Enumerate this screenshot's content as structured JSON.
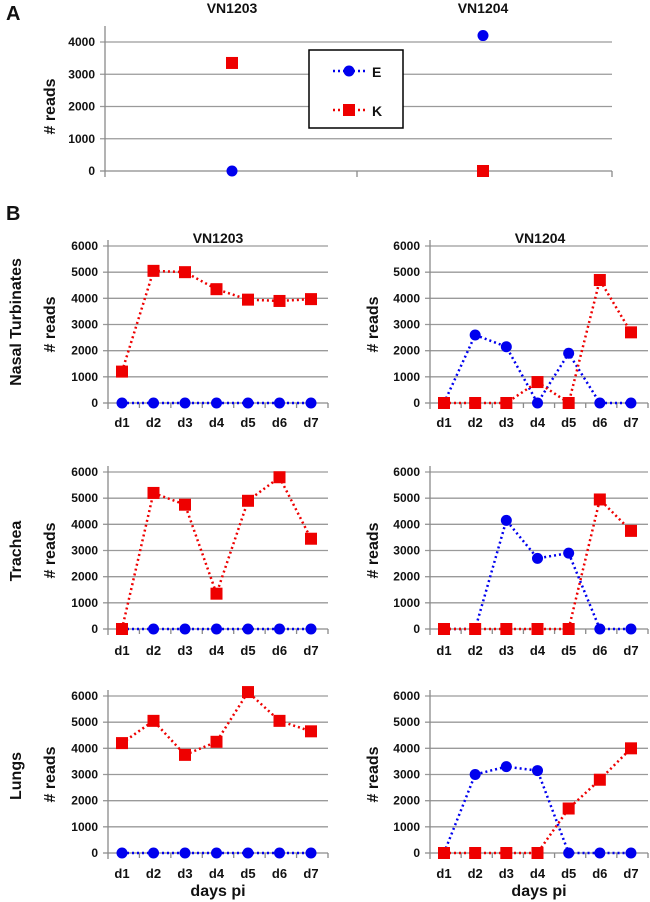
{
  "colors": {
    "E": "#0000ee",
    "K": "#ee0000"
  },
  "chart_data": [
    {
      "panel": "A",
      "type": "scatter",
      "titles": [
        "VN1203",
        "VN1204"
      ],
      "categories": [
        "VN1203",
        "VN1204"
      ],
      "ylabel": "# reads",
      "ylim": [
        0,
        4000
      ],
      "yticks": [
        "0",
        "1000",
        "2000",
        "3000",
        "4000"
      ],
      "legend": {
        "placement": "center",
        "entries": [
          "E",
          "K"
        ]
      },
      "series": [
        {
          "name": "E",
          "marker": "circle",
          "values": [
            0,
            4200
          ]
        },
        {
          "name": "K",
          "marker": "square",
          "values": [
            3350,
            0
          ]
        }
      ]
    },
    {
      "panel": "B",
      "type": "line",
      "tissue": "Nasal Turbinates",
      "strain": "VN1203",
      "categories": [
        "d1",
        "d2",
        "d3",
        "d4",
        "d5",
        "d6",
        "d7"
      ],
      "ylabel": "# reads",
      "ylim": [
        0,
        6000
      ],
      "yticks": [
        "0",
        "1000",
        "2000",
        "3000",
        "4000",
        "5000",
        "6000"
      ],
      "series": [
        {
          "name": "E",
          "values": [
            0,
            0,
            0,
            0,
            0,
            0,
            0
          ]
        },
        {
          "name": "K",
          "values": [
            1200,
            5050,
            5000,
            4350,
            3950,
            3900,
            3970
          ]
        }
      ]
    },
    {
      "panel": "B",
      "type": "line",
      "tissue": "Nasal Turbinates",
      "strain": "VN1204",
      "categories": [
        "d1",
        "d2",
        "d3",
        "d4",
        "d5",
        "d6",
        "d7"
      ],
      "ylabel": "# reads",
      "ylim": [
        0,
        6000
      ],
      "yticks": [
        "0",
        "1000",
        "2000",
        "3000",
        "4000",
        "5000",
        "6000"
      ],
      "series": [
        {
          "name": "E",
          "values": [
            0,
            2600,
            2150,
            0,
            1900,
            0,
            0
          ]
        },
        {
          "name": "K",
          "values": [
            0,
            0,
            0,
            800,
            0,
            4700,
            2700
          ]
        }
      ]
    },
    {
      "panel": "B",
      "type": "line",
      "tissue": "Trachea",
      "strain": "VN1203",
      "categories": [
        "d1",
        "d2",
        "d3",
        "d4",
        "d5",
        "d6",
        "d7"
      ],
      "ylabel": "# reads",
      "ylim": [
        0,
        6000
      ],
      "yticks": [
        "0",
        "1000",
        "2000",
        "3000",
        "4000",
        "5000",
        "6000"
      ],
      "series": [
        {
          "name": "E",
          "values": [
            0,
            0,
            0,
            0,
            0,
            0,
            0
          ]
        },
        {
          "name": "K",
          "values": [
            0,
            5200,
            4750,
            1350,
            4900,
            5800,
            3450
          ]
        }
      ]
    },
    {
      "panel": "B",
      "type": "line",
      "tissue": "Trachea",
      "strain": "VN1204",
      "categories": [
        "d1",
        "d2",
        "d3",
        "d4",
        "d5",
        "d6",
        "d7"
      ],
      "ylabel": "# reads",
      "ylim": [
        0,
        6000
      ],
      "yticks": [
        "0",
        "1000",
        "2000",
        "3000",
        "4000",
        "5000",
        "6000"
      ],
      "series": [
        {
          "name": "E",
          "values": [
            0,
            0,
            4150,
            2700,
            2900,
            0,
            0
          ]
        },
        {
          "name": "K",
          "values": [
            0,
            0,
            0,
            0,
            0,
            4950,
            3750
          ]
        }
      ]
    },
    {
      "panel": "B",
      "type": "line",
      "tissue": "Lungs",
      "strain": "VN1203",
      "categories": [
        "d1",
        "d2",
        "d3",
        "d4",
        "d5",
        "d6",
        "d7"
      ],
      "ylabel": "# reads",
      "xlabel": "days pi",
      "ylim": [
        0,
        6000
      ],
      "yticks": [
        "0",
        "1000",
        "2000",
        "3000",
        "4000",
        "5000",
        "6000"
      ],
      "series": [
        {
          "name": "E",
          "values": [
            0,
            0,
            0,
            0,
            0,
            0,
            0
          ]
        },
        {
          "name": "K",
          "values": [
            4200,
            5050,
            3750,
            4250,
            6150,
            5050,
            4650
          ]
        }
      ]
    },
    {
      "panel": "B",
      "type": "line",
      "tissue": "Lungs",
      "strain": "VN1204",
      "categories": [
        "d1",
        "d2",
        "d3",
        "d4",
        "d5",
        "d6",
        "d7"
      ],
      "ylabel": "# reads",
      "xlabel": "days pi",
      "ylim": [
        0,
        6000
      ],
      "yticks": [
        "0",
        "1000",
        "2000",
        "3000",
        "4000",
        "5000",
        "6000"
      ],
      "series": [
        {
          "name": "E",
          "values": [
            0,
            3000,
            3300,
            3150,
            0,
            0,
            0
          ]
        },
        {
          "name": "K",
          "values": [
            0,
            0,
            0,
            0,
            1700,
            2800,
            4000
          ]
        }
      ]
    }
  ],
  "labels": {
    "panel_a": "A",
    "panel_b": "B",
    "b_title_left": "VN1203",
    "b_title_right": "VN1204",
    "rows": [
      "Nasal Turbinates",
      "Trachea",
      "Lungs"
    ]
  }
}
